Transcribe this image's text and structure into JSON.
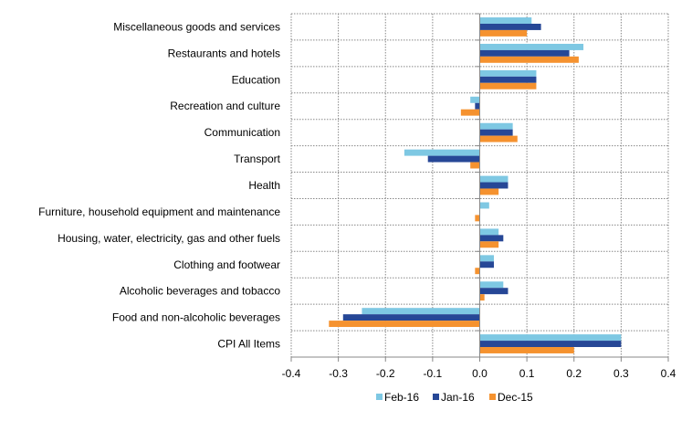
{
  "chart_data": {
    "type": "bar",
    "orientation": "horizontal",
    "title": "",
    "xlabel": "",
    "ylabel": "",
    "categories": [
      "Miscellaneous goods and services",
      "Restaurants and hotels",
      "Education",
      "Recreation and culture",
      "Communication",
      "Transport",
      "Health",
      "Furniture, household equipment and maintenance",
      "Housing, water, electricity, gas and other fuels",
      "Clothing and footwear",
      "Alcoholic beverages and tobacco",
      "Food and non-alcoholic beverages",
      "CPI All Items"
    ],
    "series": [
      {
        "name": "Feb-16",
        "color": "#7ec8e3",
        "values": [
          0.11,
          0.22,
          0.12,
          -0.02,
          0.07,
          -0.16,
          0.06,
          0.02,
          0.04,
          0.03,
          0.05,
          -0.25,
          0.3
        ]
      },
      {
        "name": "Jan-16",
        "color": "#264796",
        "values": [
          0.13,
          0.19,
          0.12,
          -0.01,
          0.07,
          -0.11,
          0.06,
          0.0,
          0.05,
          0.03,
          0.06,
          -0.29,
          0.3
        ]
      },
      {
        "name": "Dec-15",
        "color": "#f5922f",
        "values": [
          0.1,
          0.21,
          0.12,
          -0.04,
          0.08,
          -0.02,
          0.04,
          -0.01,
          0.04,
          -0.01,
          0.01,
          -0.32,
          0.2
        ]
      }
    ],
    "xlim": [
      -0.4,
      0.4
    ],
    "xticks": [
      "-0.4",
      "-0.3",
      "-0.2",
      "-0.1",
      "0.0",
      "0.1",
      "0.2",
      "0.3",
      "0.4"
    ],
    "grid": true,
    "grid_style": "dotted",
    "legend_placement": "bottom"
  }
}
